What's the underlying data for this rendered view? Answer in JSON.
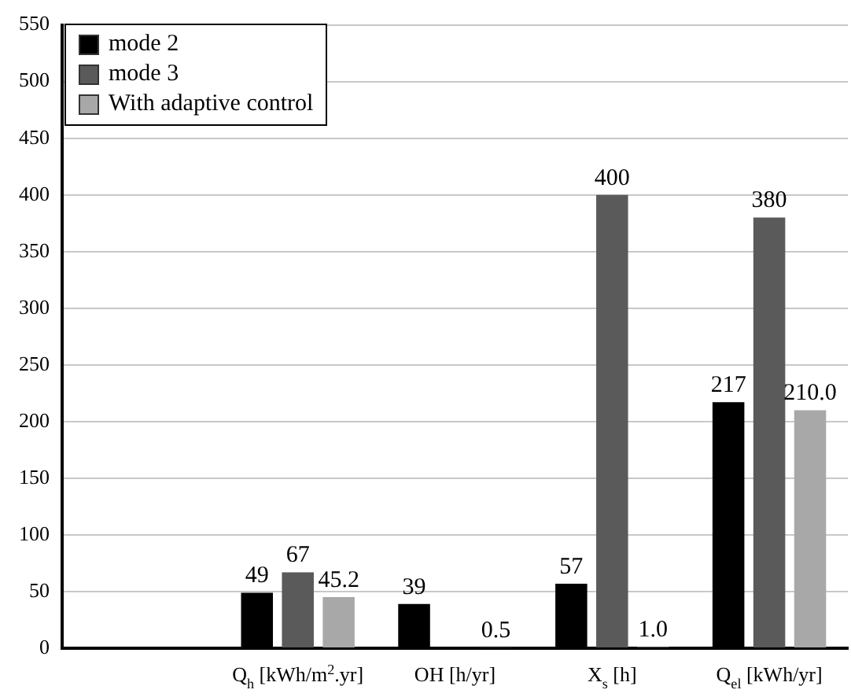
{
  "chart_data": {
    "type": "bar",
    "categories": [
      null,
      "Q$_{h}$ [kWh/m$^{2}$.yr]",
      "OH [h/yr]",
      "X$_{s}$ [h]",
      "Q$_{el}$ [kWh/yr]"
    ],
    "series": [
      {
        "name": "mode 2",
        "color": "#000000",
        "values": [
          null,
          49,
          39,
          57,
          217
        ],
        "value_labels": [
          null,
          "49",
          "39",
          "57",
          "217"
        ]
      },
      {
        "name": "mode 3",
        "color": "#5a5a5a",
        "values": [
          null,
          67,
          null,
          400,
          380
        ],
        "value_labels": [
          null,
          "67",
          null,
          "400",
          "380"
        ]
      },
      {
        "name": "With adaptive control",
        "color": "#a8a8a8",
        "values": [
          null,
          45.2,
          0.5,
          1.0,
          210.0
        ],
        "value_labels": [
          null,
          "45.2",
          "0.5",
          "1.0",
          "210.0"
        ]
      }
    ],
    "ylim": [
      0,
      550
    ],
    "yticks": [
      0,
      50,
      100,
      150,
      200,
      250,
      300,
      350,
      400,
      450,
      500,
      550
    ],
    "grid": "y",
    "legend": "top left"
  }
}
